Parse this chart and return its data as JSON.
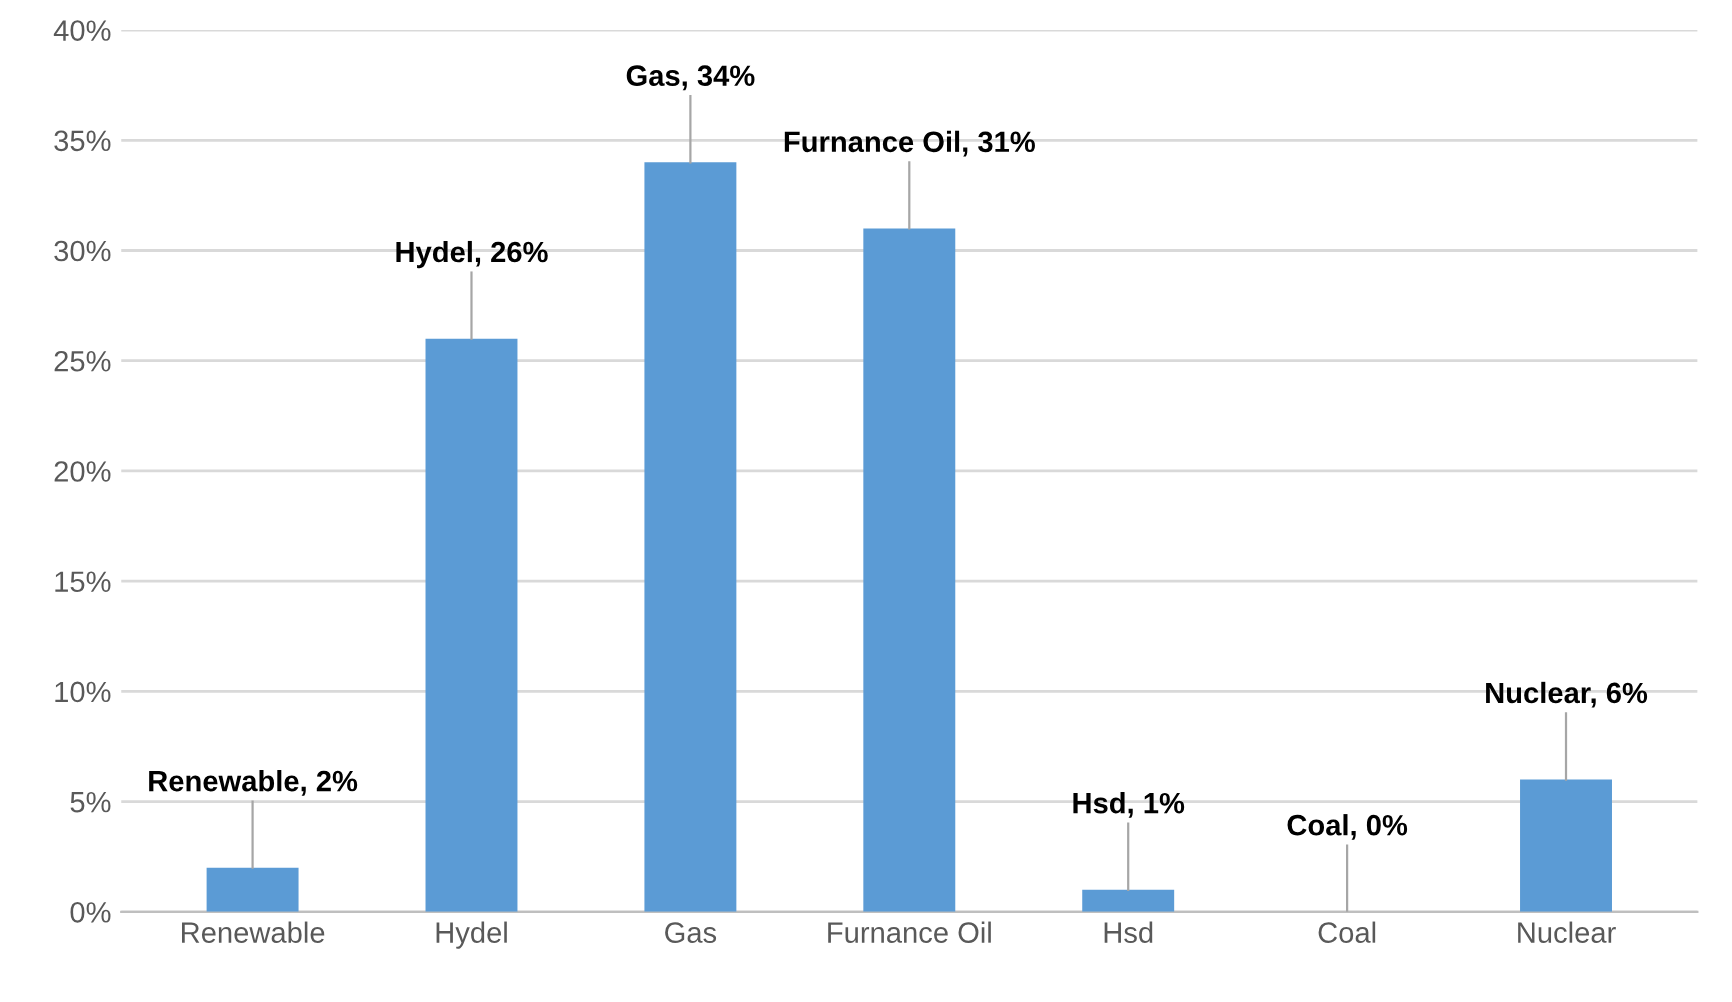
{
  "chart_data": {
    "type": "bar",
    "categories": [
      "Renewable",
      "Hydel",
      "Gas",
      "Furnance Oil",
      "Hsd",
      "Coal",
      "Nuclear"
    ],
    "values": [
      2,
      26,
      34,
      31,
      1,
      0,
      6
    ],
    "color": "#5b9bd5",
    "value_labels": [
      "Renewable, 2%",
      "Hydel, 26%",
      "Gas, 34%",
      "Furnance Oil, 31%",
      "Hsd, 1%",
      "Coal, 0%",
      "Nuclear, 6%"
    ],
    "ylim": [
      0,
      40
    ],
    "yticks": [
      {
        "value": 0,
        "label": "0%"
      },
      {
        "value": 5,
        "label": "5%"
      },
      {
        "value": 10,
        "label": "10%"
      },
      {
        "value": 15,
        "label": "15%"
      },
      {
        "value": 20,
        "label": "20%"
      },
      {
        "value": 25,
        "label": "25%"
      },
      {
        "value": 30,
        "label": "30%"
      },
      {
        "value": 35,
        "label": "35%"
      },
      {
        "value": 40,
        "label": "40%"
      }
    ],
    "grid": "y"
  }
}
